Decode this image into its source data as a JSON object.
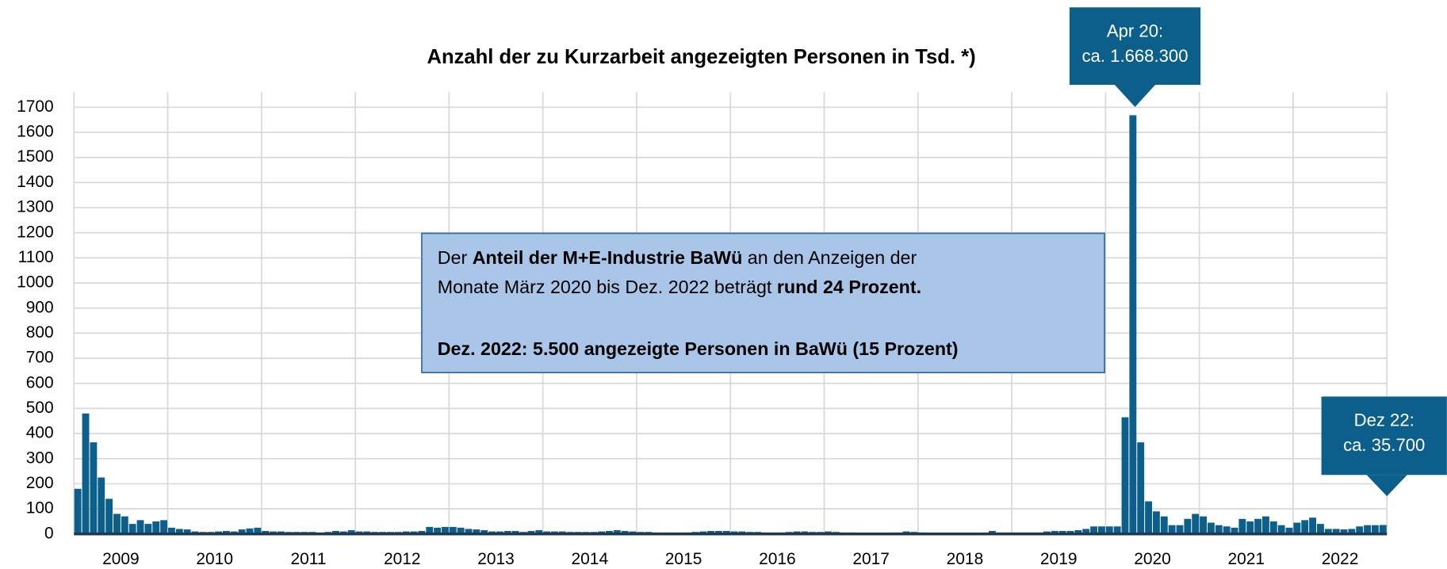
{
  "chart_data": {
    "type": "bar",
    "title": "Anzahl der zu Kurzarbeit angezeigten Personen in Tsd. *)",
    "color": "#0b5f8a",
    "grid": true,
    "ylim": [
      0,
      1760
    ],
    "yticks": [
      0,
      100,
      200,
      300,
      400,
      500,
      600,
      700,
      800,
      900,
      1000,
      1100,
      1200,
      1300,
      1400,
      1500,
      1600,
      1700
    ],
    "categories": [
      null,
      null,
      null,
      null,
      null,
      null,
      "2009",
      null,
      null,
      null,
      null,
      null,
      null,
      null,
      null,
      null,
      null,
      null,
      "2010",
      null,
      null,
      null,
      null,
      null,
      null,
      null,
      null,
      null,
      null,
      null,
      "2011",
      null,
      null,
      null,
      null,
      null,
      null,
      null,
      null,
      null,
      null,
      null,
      "2012",
      null,
      null,
      null,
      null,
      null,
      null,
      null,
      null,
      null,
      null,
      null,
      "2013",
      null,
      null,
      null,
      null,
      null,
      null,
      null,
      null,
      null,
      null,
      null,
      "2014",
      null,
      null,
      null,
      null,
      null,
      null,
      null,
      null,
      null,
      null,
      null,
      "2015",
      null,
      null,
      null,
      null,
      null,
      null,
      null,
      null,
      null,
      null,
      null,
      "2016",
      null,
      null,
      null,
      null,
      null,
      null,
      null,
      null,
      null,
      null,
      null,
      "2017",
      null,
      null,
      null,
      null,
      null,
      null,
      null,
      null,
      null,
      null,
      null,
      "2018",
      null,
      null,
      null,
      null,
      null,
      null,
      null,
      null,
      null,
      null,
      null,
      "2019",
      null,
      null,
      null,
      null,
      null,
      null,
      null,
      null,
      null,
      null,
      null,
      "2020",
      null,
      null,
      null,
      null,
      null,
      null,
      null,
      null,
      null,
      null,
      null,
      "2021",
      null,
      null,
      null,
      null,
      null,
      null,
      null,
      null,
      null,
      null,
      null,
      "2022",
      null,
      null,
      null,
      null,
      null
    ],
    "values": [
      180,
      480,
      365,
      225,
      140,
      80,
      70,
      40,
      55,
      40,
      50,
      55,
      25,
      20,
      18,
      10,
      8,
      8,
      10,
      12,
      10,
      18,
      22,
      25,
      12,
      10,
      10,
      8,
      8,
      8,
      8,
      6,
      8,
      12,
      10,
      15,
      10,
      10,
      8,
      8,
      8,
      8,
      10,
      10,
      12,
      28,
      25,
      28,
      28,
      25,
      20,
      18,
      15,
      10,
      10,
      12,
      12,
      8,
      12,
      15,
      10,
      10,
      10,
      8,
      8,
      8,
      8,
      10,
      12,
      15,
      12,
      10,
      8,
      8,
      6,
      6,
      6,
      6,
      6,
      8,
      10,
      12,
      12,
      12,
      10,
      10,
      8,
      8,
      6,
      6,
      6,
      8,
      10,
      10,
      8,
      8,
      10,
      8,
      6,
      6,
      5,
      5,
      5,
      5,
      5,
      6,
      10,
      8,
      6,
      5,
      5,
      5,
      5,
      5,
      5,
      5,
      5,
      12,
      6,
      6,
      6,
      6,
      6,
      6,
      10,
      12,
      12,
      12,
      15,
      20,
      30,
      30,
      30,
      30,
      465,
      1668.3,
      365,
      130,
      90,
      70,
      35,
      35,
      60,
      80,
      70,
      45,
      35,
      30,
      25,
      60,
      50,
      60,
      70,
      50,
      35,
      25,
      45,
      55,
      65,
      40,
      20,
      20,
      18,
      20,
      30,
      35,
      35,
      35.7
    ],
    "annotations": [
      {
        "lines": [
          "Apr 20:",
          "ca. 1.668.300"
        ]
      },
      {
        "lines": [
          "Dez 22:",
          "ca. 35.700"
        ]
      }
    ],
    "textbox": {
      "lines": [
        [
          {
            "text": "Der ",
            "bold": false
          },
          {
            "text": "Anteil der M+E-Industrie BaWü",
            "bold": true
          },
          {
            "text": " an den Anzeigen der",
            "bold": false
          }
        ],
        [
          {
            "text": "Monate März 2020 bis Dez. 2022 beträgt ",
            "bold": false
          },
          {
            "text": "rund 24 Prozent.",
            "bold": true
          }
        ],
        [
          {
            "text": "Dez. 2022: 5.500 angezeigte Personen in BaWü (15 Prozent)",
            "bold": true
          }
        ]
      ]
    }
  }
}
